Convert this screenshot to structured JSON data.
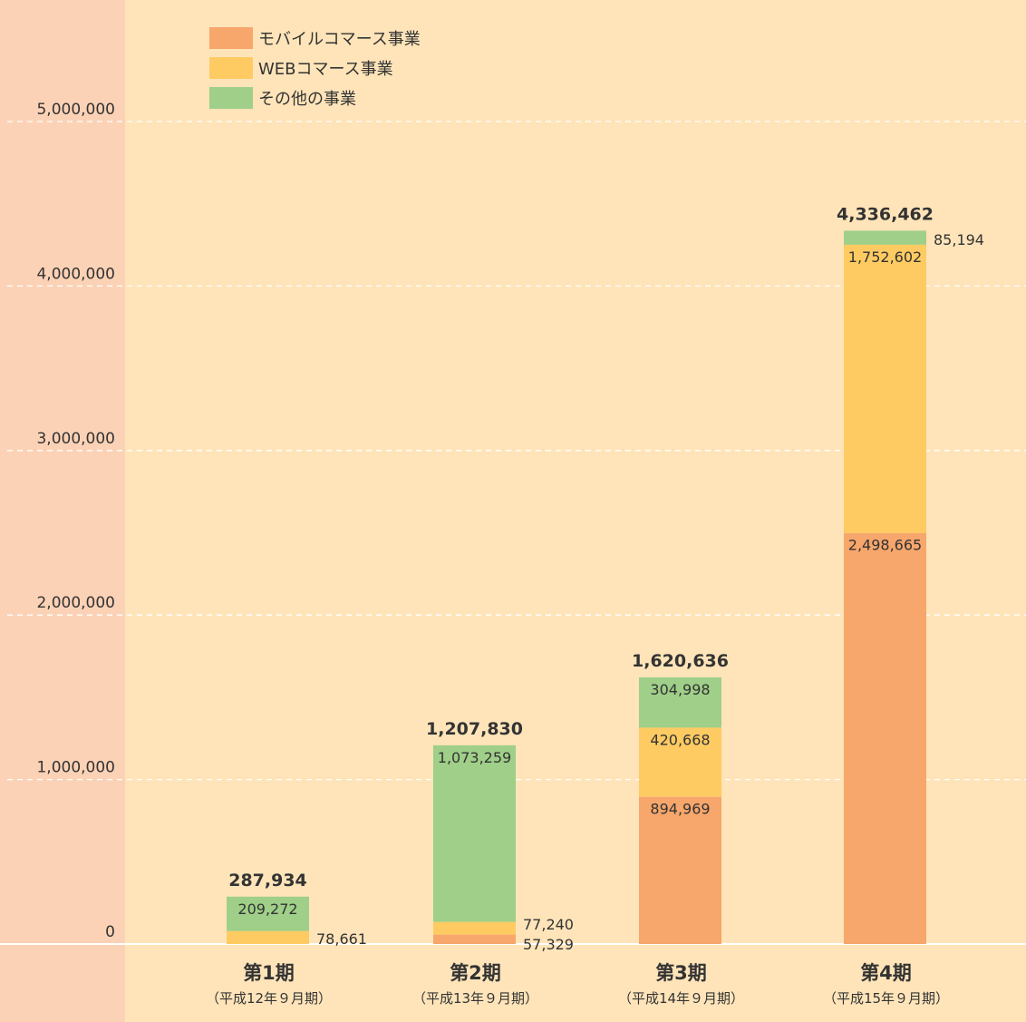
{
  "chart_data": {
    "type": "bar",
    "stacked": true,
    "y_ticks": [
      0,
      1000000,
      2000000,
      3000000,
      4000000,
      5000000
    ],
    "y_tick_labels": [
      "0",
      "1,000,000",
      "2,000,000",
      "3,000,000",
      "4,000,000",
      "5,000,000"
    ],
    "ylim": [
      0,
      5000000
    ],
    "grid": true,
    "legend_position": "top-left",
    "categories": [
      {
        "label": "第1期",
        "sub": "（平成12年９月期）"
      },
      {
        "label": "第2期",
        "sub": "（平成13年９月期）"
      },
      {
        "label": "第3期",
        "sub": "（平成14年９月期）"
      },
      {
        "label": "第4期",
        "sub": "（平成15年９月期）"
      }
    ],
    "series": [
      {
        "name": "モバイルコマース事業",
        "color": "#F7A66C",
        "values": [
          0,
          57329,
          894969,
          2498665
        ],
        "labels": [
          "",
          "57,329",
          "894,969",
          "2,498,665"
        ]
      },
      {
        "name": "WEBコマース事業",
        "color": "#FECB63",
        "values": [
          78661,
          77240,
          420668,
          1752602
        ],
        "labels": [
          "78,661",
          "77,240",
          "420,668",
          "1,752,602"
        ]
      },
      {
        "name": "その他の事業",
        "color": "#9FCF88",
        "values": [
          209272,
          1073259,
          304998,
          85194
        ],
        "labels": [
          "209,272",
          "1,073,259",
          "304,998",
          "85,194"
        ]
      }
    ],
    "totals": [
      287934,
      1207830,
      1620636,
      4336462
    ],
    "total_labels": [
      "287,934",
      "1,207,830",
      "1,620,636",
      "4,336,462"
    ]
  },
  "colors": {
    "plot_background": "#FFE4B9",
    "axis_background": "#FCD2B6",
    "gridline": "#FFFFFF"
  }
}
